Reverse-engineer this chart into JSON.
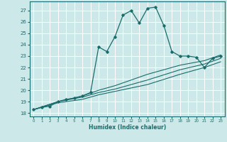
{
  "xlabel": "Humidex (Indice chaleur)",
  "bg_color": "#cce8e8",
  "line_color": "#1a6b6b",
  "grid_color": "#ffffff",
  "xlim": [
    -0.5,
    23.5
  ],
  "ylim": [
    17.7,
    27.8
  ],
  "yticks": [
    18,
    19,
    20,
    21,
    22,
    23,
    24,
    25,
    26,
    27
  ],
  "xticks": [
    0,
    1,
    2,
    3,
    4,
    5,
    6,
    7,
    8,
    9,
    10,
    11,
    12,
    13,
    14,
    15,
    16,
    17,
    18,
    19,
    20,
    21,
    22,
    23
  ],
  "lines": [
    {
      "x": [
        0,
        1,
        2,
        3,
        4,
        5,
        6,
        7,
        8,
        9,
        10,
        11,
        12,
        13,
        14,
        15,
        16,
        17,
        18,
        19,
        20,
        21,
        22,
        23
      ],
      "y": [
        18.3,
        18.5,
        18.6,
        19.0,
        19.2,
        19.3,
        19.5,
        19.8,
        23.8,
        23.4,
        24.7,
        26.6,
        27.0,
        25.9,
        27.2,
        27.3,
        25.7,
        23.4,
        23.0,
        23.0,
        22.9,
        22.0,
        22.8,
        23.0
      ],
      "marker": true
    },
    {
      "x": [
        0,
        3,
        6,
        8,
        10,
        14,
        18,
        21,
        23
      ],
      "y": [
        18.3,
        19.0,
        19.5,
        20.0,
        20.4,
        21.4,
        22.2,
        22.6,
        23.1
      ],
      "marker": false
    },
    {
      "x": [
        0,
        3,
        6,
        8,
        10,
        14,
        18,
        21,
        23
      ],
      "y": [
        18.3,
        19.0,
        19.4,
        19.8,
        20.1,
        20.9,
        21.8,
        22.3,
        22.8
      ],
      "marker": false
    },
    {
      "x": [
        0,
        3,
        6,
        8,
        10,
        14,
        18,
        21,
        23
      ],
      "y": [
        18.3,
        18.9,
        19.2,
        19.6,
        19.9,
        20.5,
        21.4,
        22.0,
        22.5
      ],
      "marker": false
    }
  ]
}
